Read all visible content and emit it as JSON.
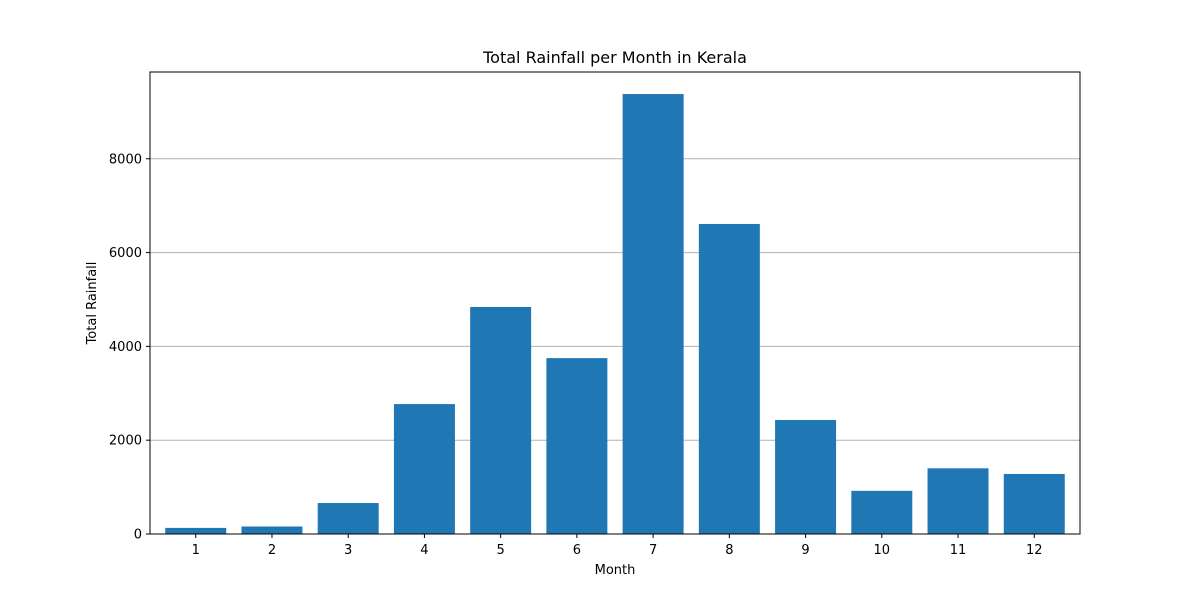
{
  "chart_data": {
    "type": "bar",
    "title": "Total Rainfall per Month in Kerala",
    "xlabel": "Month",
    "ylabel": "Total Rainfall",
    "categories": [
      "1",
      "2",
      "3",
      "4",
      "5",
      "6",
      "7",
      "8",
      "9",
      "10",
      "11",
      "12"
    ],
    "values": [
      130,
      160,
      660,
      2770,
      4840,
      3750,
      9380,
      6610,
      2430,
      920,
      1400,
      1280
    ],
    "ylim": [
      0,
      9850
    ],
    "yticks": [
      0,
      2000,
      4000,
      6000,
      8000
    ],
    "grid": "y-axis",
    "bar_color": "#1f77b4",
    "legend": "none"
  }
}
